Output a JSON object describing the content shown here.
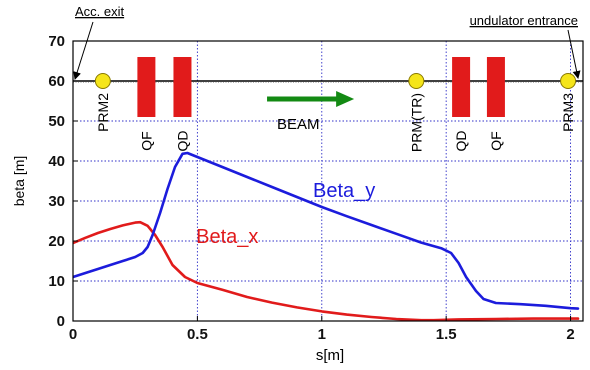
{
  "chart_data": {
    "type": "line",
    "xlabel": "s[m]",
    "ylabel": "beta [m]",
    "xlim": [
      0,
      2.05
    ],
    "ylim": [
      0,
      70
    ],
    "x_ticks": [
      0,
      0.5,
      1,
      1.5,
      2
    ],
    "x_tick_labels": [
      "0",
      "0.5",
      "1",
      "1.5",
      "2"
    ],
    "y_ticks": [
      0,
      10,
      20,
      30,
      40,
      50,
      60,
      70
    ],
    "y_tick_labels": [
      "0",
      "10",
      "20",
      "30",
      "40",
      "50",
      "60",
      "70"
    ],
    "grid": "dotted",
    "series": [
      {
        "name": "Beta_x",
        "color": "#e11b1b",
        "label_at": [
          0.62,
          19.5
        ],
        "points": [
          [
            0,
            19.5
          ],
          [
            0.05,
            20.8
          ],
          [
            0.1,
            22.0
          ],
          [
            0.15,
            23.0
          ],
          [
            0.2,
            23.9
          ],
          [
            0.25,
            24.6
          ],
          [
            0.27,
            24.7
          ],
          [
            0.3,
            23.8
          ],
          [
            0.33,
            21.5
          ],
          [
            0.36,
            18.5
          ],
          [
            0.4,
            14.0
          ],
          [
            0.45,
            11.0
          ],
          [
            0.5,
            9.5
          ],
          [
            0.6,
            7.8
          ],
          [
            0.7,
            6.0
          ],
          [
            0.8,
            4.6
          ],
          [
            0.9,
            3.4
          ],
          [
            1.0,
            2.4
          ],
          [
            1.1,
            1.6
          ],
          [
            1.2,
            1.0
          ],
          [
            1.3,
            0.5
          ],
          [
            1.4,
            0.2
          ],
          [
            1.45,
            0.2
          ],
          [
            1.5,
            0.3
          ],
          [
            1.55,
            0.4
          ],
          [
            1.7,
            0.5
          ],
          [
            1.85,
            0.6
          ],
          [
            2.0,
            0.6
          ],
          [
            2.03,
            0.6
          ]
        ]
      },
      {
        "name": "Beta_y",
        "color": "#1c1cdc",
        "label_at": [
          1.09,
          31.0
        ],
        "points": [
          [
            0,
            11.0
          ],
          [
            0.05,
            12.0
          ],
          [
            0.1,
            13.0
          ],
          [
            0.15,
            14.0
          ],
          [
            0.2,
            15.0
          ],
          [
            0.25,
            16.0
          ],
          [
            0.28,
            17.0
          ],
          [
            0.3,
            18.5
          ],
          [
            0.32,
            21.5
          ],
          [
            0.35,
            27.0
          ],
          [
            0.38,
            33.0
          ],
          [
            0.41,
            38.5
          ],
          [
            0.44,
            41.8
          ],
          [
            0.46,
            42.0
          ],
          [
            0.5,
            41.0
          ],
          [
            0.6,
            38.5
          ],
          [
            0.7,
            36.0
          ],
          [
            0.8,
            33.5
          ],
          [
            0.9,
            31.0
          ],
          [
            1.0,
            28.5
          ],
          [
            1.1,
            26.2
          ],
          [
            1.2,
            24.0
          ],
          [
            1.3,
            21.8
          ],
          [
            1.4,
            19.6
          ],
          [
            1.48,
            18.2
          ],
          [
            1.52,
            17.0
          ],
          [
            1.55,
            14.5
          ],
          [
            1.58,
            11.0
          ],
          [
            1.62,
            7.5
          ],
          [
            1.65,
            5.5
          ],
          [
            1.7,
            4.5
          ],
          [
            1.8,
            4.2
          ],
          [
            1.9,
            3.8
          ],
          [
            2.0,
            3.2
          ],
          [
            2.03,
            3.1
          ]
        ]
      }
    ],
    "beamline": {
      "y": 60,
      "line_color": "#000000",
      "monitors": [
        {
          "label": "PRM2",
          "x": 0.12
        },
        {
          "label": "PRM(TR)",
          "x": 1.38
        },
        {
          "label": "PRM3",
          "x": 1.99
        }
      ],
      "monitor_color": "#f5e51a",
      "magnets": [
        {
          "label": "QF",
          "x": 0.295
        },
        {
          "label": "QD",
          "x": 0.44
        },
        {
          "label": "QD",
          "x": 1.56
        },
        {
          "label": "QF",
          "x": 1.7
        }
      ],
      "magnet_color": "#e11b1b",
      "beam_label": "BEAM",
      "beam_arrow_color": "#138a13",
      "annotations": [
        {
          "text": "Acc. exit",
          "pointer_x": 0.0,
          "pointer_y": 60
        },
        {
          "text": "undulator entrance",
          "pointer_x": 2.03,
          "pointer_y": 60
        }
      ]
    }
  }
}
